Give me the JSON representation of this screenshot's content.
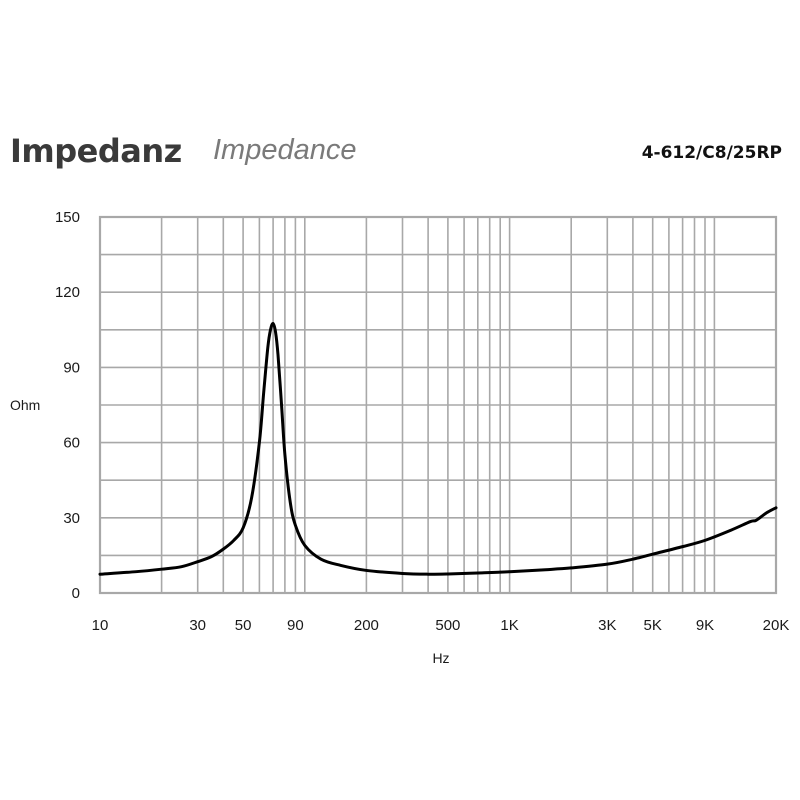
{
  "header": {
    "title": "Impedanz",
    "subtitle": "Impedance",
    "model": "4-612/C8/25RP"
  },
  "chart_data": {
    "type": "line",
    "xscale": "log",
    "xlim": [
      10,
      20000
    ],
    "ylim": [
      0,
      150
    ],
    "xlabel": "Hz",
    "ylabel": "Ohm",
    "grid": true,
    "colors": {
      "line": "#000000",
      "grid": "#a8a8a8"
    },
    "yticks": [
      {
        "value": 0,
        "label": "0"
      },
      {
        "value": 30,
        "label": "30"
      },
      {
        "value": 60,
        "label": "60"
      },
      {
        "value": 90,
        "label": "90"
      },
      {
        "value": 120,
        "label": "120"
      },
      {
        "value": 150,
        "label": "150"
      }
    ],
    "xticks": [
      {
        "value": 10,
        "label": "10"
      },
      {
        "value": 30,
        "label": "30"
      },
      {
        "value": 50,
        "label": "50"
      },
      {
        "value": 90,
        "label": "90"
      },
      {
        "value": 200,
        "label": "200"
      },
      {
        "value": 500,
        "label": "500"
      },
      {
        "value": 1000,
        "label": "1K"
      },
      {
        "value": 3000,
        "label": "3K"
      },
      {
        "value": 5000,
        "label": "5K"
      },
      {
        "value": 9000,
        "label": "9K"
      },
      {
        "value": 20000,
        "label": "20K"
      }
    ],
    "xgrid": [
      20,
      30,
      40,
      50,
      60,
      70,
      80,
      90,
      100,
      200,
      300,
      400,
      500,
      600,
      700,
      800,
      900,
      1000,
      2000,
      3000,
      4000,
      5000,
      6000,
      7000,
      8000,
      9000,
      10000
    ],
    "series": [
      {
        "x": [
          10,
          15,
          20,
          25,
          30,
          35,
          40,
          45,
          50,
          55,
          60,
          63,
          66,
          68,
          70,
          72,
          74,
          77,
          80,
          85,
          90,
          100,
          120,
          150,
          200,
          300,
          400,
          500,
          700,
          1000,
          1500,
          2000,
          3000,
          4000,
          5000,
          7000,
          9000,
          12000,
          15000,
          16000,
          18000,
          20000
        ],
        "y": [
          7.5,
          8.5,
          9.5,
          10.5,
          12.5,
          14.5,
          17.5,
          21,
          26,
          38,
          60,
          80,
          98,
          105,
          107.5,
          104,
          95,
          75,
          55,
          36,
          27,
          19,
          13.5,
          11,
          9,
          7.8,
          7.5,
          7.6,
          8,
          8.5,
          9.3,
          10,
          11.5,
          13.5,
          15.5,
          18.5,
          21,
          25,
          28.5,
          29,
          32,
          34
        ]
      }
    ]
  }
}
